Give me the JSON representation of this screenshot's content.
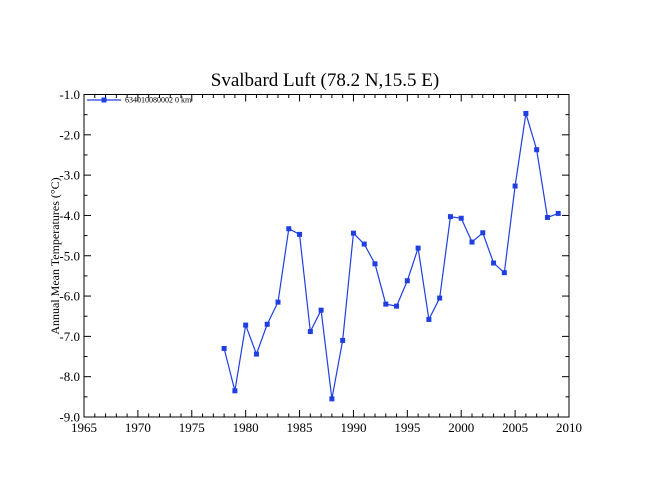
{
  "chart_data": {
    "type": "line",
    "title": "Svalbard Luft (78.2 N,15.5 E)",
    "xlabel": "",
    "ylabel": "Annual Mean Temperatures (°C)",
    "xlim": [
      1965,
      2010
    ],
    "ylim": [
      -9.0,
      -1.0
    ],
    "xticks": [
      1965,
      1970,
      1975,
      1980,
      1985,
      1990,
      1995,
      2000,
      2005,
      2010
    ],
    "yticks": [
      -1.0,
      -2.0,
      -3.0,
      -4.0,
      -5.0,
      -6.0,
      -7.0,
      -8.0,
      -9.0
    ],
    "ytick_labels": [
      "-1.0",
      "-2.0",
      "-3.0",
      "-4.0",
      "-5.0",
      "-6.0",
      "-7.0",
      "-8.0",
      "-9.0"
    ],
    "grid": false,
    "legend_position": "top-left",
    "series_color": "#1f3fe0",
    "series": [
      {
        "name": "634010080002  0 km",
        "x": [
          1978,
          1979,
          1980,
          1981,
          1982,
          1983,
          1984,
          1985,
          1986,
          1987,
          1988,
          1989,
          1990,
          1991,
          1992,
          1993,
          1994,
          1995,
          1996,
          1997,
          1998,
          1999,
          2000,
          2001,
          2002,
          2003,
          2004,
          2005,
          2006,
          2007,
          2008,
          2009
        ],
        "values": [
          -7.3,
          -8.35,
          -6.72,
          -7.44,
          -6.7,
          -6.15,
          -4.33,
          -4.47,
          -6.88,
          -6.35,
          -8.55,
          -7.1,
          -4.44,
          -4.71,
          -5.2,
          -6.2,
          -6.25,
          -5.62,
          -4.81,
          -6.58,
          -6.05,
          -4.03,
          -4.07,
          -4.66,
          -4.43,
          -5.18,
          -5.42,
          -3.27,
          -1.47,
          -2.37,
          -4.05,
          -3.95
        ]
      }
    ]
  }
}
